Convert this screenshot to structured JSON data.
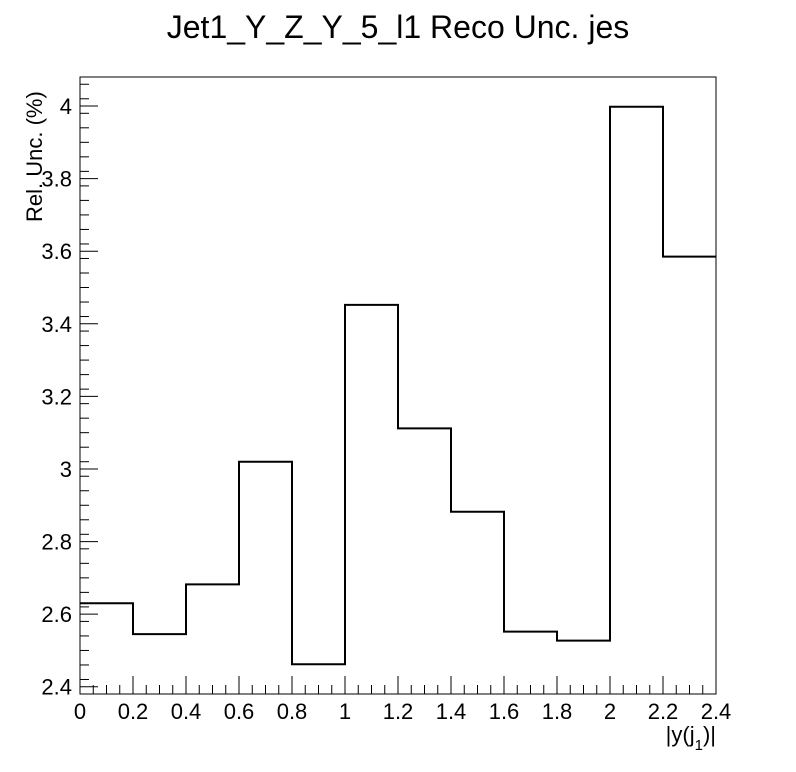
{
  "chart_data": {
    "type": "histogram",
    "title": "Jet1_Y_Z_Y_5_l1 Reco Unc. jes",
    "xlabel": "|y(j",
    "xlabel_sub": "1",
    "xlabel_end": ")|",
    "ylabel": "Rel. Unc. (%)",
    "xlim": [
      0,
      2.4
    ],
    "ylim": [
      2.38,
      4.08
    ],
    "x_ticks": [
      0,
      0.2,
      0.4,
      0.6,
      0.8,
      1,
      1.2,
      1.4,
      1.6,
      1.8,
      2,
      2.2,
      2.4
    ],
    "x_tick_labels": [
      "0",
      "0.2",
      "0.4",
      "0.6",
      "0.8",
      "1",
      "1.2",
      "1.4",
      "1.6",
      "1.8",
      "2",
      "2.2",
      "2.4"
    ],
    "y_ticks": [
      2.4,
      2.6,
      2.8,
      3,
      3.2,
      3.4,
      3.6,
      3.8,
      4
    ],
    "y_tick_labels": [
      "2.4",
      "2.6",
      "2.8",
      "3",
      "3.2",
      "3.4",
      "3.6",
      "3.8",
      "4"
    ],
    "bin_edges": [
      0,
      0.2,
      0.4,
      0.6,
      0.8,
      1.0,
      1.2,
      1.4,
      1.6,
      1.8,
      2.0,
      2.2,
      2.4
    ],
    "values": [
      2.63,
      2.545,
      2.682,
      3.02,
      2.462,
      3.452,
      3.112,
      2.882,
      2.552,
      2.527,
      3.998,
      3.585
    ],
    "line_color": "#000000",
    "grid": false
  }
}
